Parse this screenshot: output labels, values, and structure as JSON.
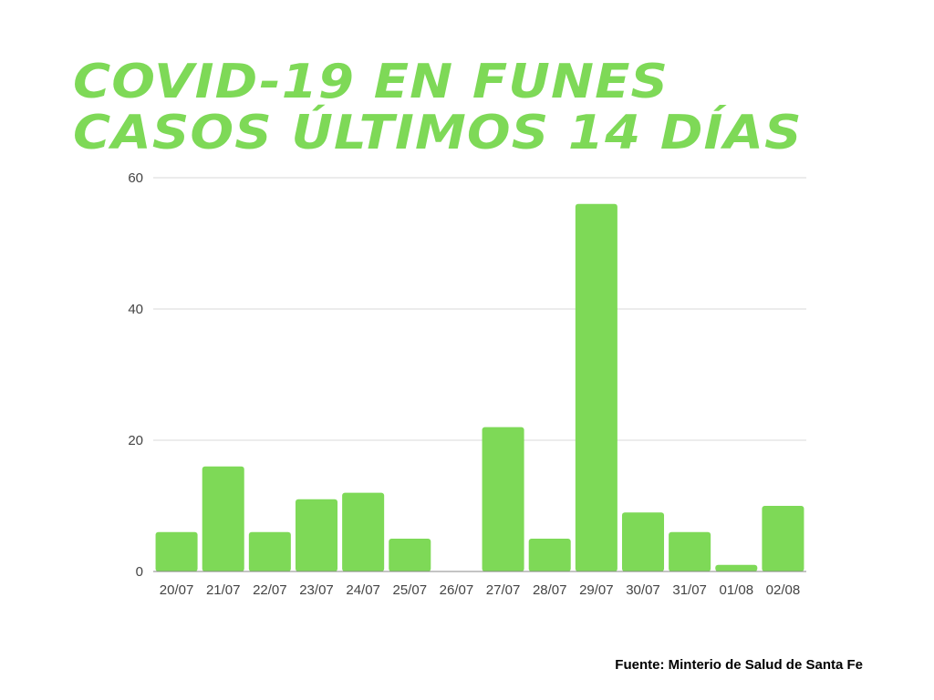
{
  "chart_data": {
    "type": "bar",
    "title": [
      "COVID-19 EN FUNES",
      "CASOS ÚLTIMOS 14 DÍAS"
    ],
    "categories": [
      "20/07",
      "21/07",
      "22/07",
      "23/07",
      "24/07",
      "25/07",
      "26/07",
      "27/07",
      "28/07",
      "29/07",
      "30/07",
      "31/07",
      "01/08",
      "02/08"
    ],
    "values": [
      6,
      16,
      6,
      11,
      12,
      5,
      0,
      22,
      5,
      56,
      9,
      6,
      1,
      10
    ],
    "xlabel": "",
    "ylabel": "",
    "ylim": [
      0,
      60
    ],
    "yticks": [
      0,
      20,
      40,
      60
    ],
    "grid": true,
    "bar_color": "#7ED957",
    "title_color": "#7ED957"
  },
  "source": "Fuente: Minterio de Salud de Santa Fe"
}
